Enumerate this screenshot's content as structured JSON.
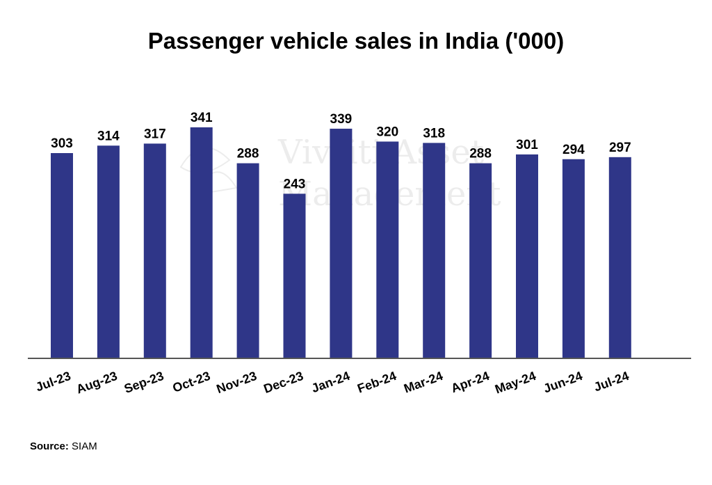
{
  "title": "Passenger vehicle sales in India ('000)",
  "source": {
    "label": "Source:",
    "value": "SIAM"
  },
  "watermark": {
    "line1": "Vivriti Asset",
    "line2": "Management"
  },
  "colors": {
    "bar": "#2f3688",
    "axis": "#555555",
    "text": "#000000"
  },
  "chart_data": {
    "type": "bar",
    "categories": [
      "Jul-23",
      "Aug-23",
      "Sep-23",
      "Oct-23",
      "Nov-23",
      "Dec-23",
      "Jan-24",
      "Feb-24",
      "Mar-24",
      "Apr-24",
      "May-24",
      "Jun-24",
      "Jul-24"
    ],
    "values": [
      303,
      314,
      317,
      341,
      288,
      243,
      339,
      320,
      318,
      288,
      301,
      294,
      297
    ],
    "title": "Passenger vehicle sales in India ('000)",
    "xlabel": "",
    "ylabel": "",
    "ylim": [
      0,
      341
    ],
    "grid": false,
    "data_labels": true
  }
}
